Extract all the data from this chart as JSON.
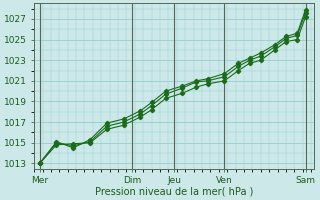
{
  "title": "",
  "xlabel": "Pression niveau de la mer( hPa )",
  "ylabel": "",
  "bg_color": "#cce8e8",
  "grid_color": "#99cccc",
  "line_color": "#1a6b1a",
  "xlim": [
    0,
    100
  ],
  "ylim": [
    1012.5,
    1028.5
  ],
  "yticks": [
    1013,
    1015,
    1017,
    1019,
    1021,
    1023,
    1025,
    1027
  ],
  "xtick_positions": [
    2,
    35,
    50,
    68,
    97
  ],
  "xtick_labels": [
    "Mer",
    "Dim",
    "Jeu",
    "Ven",
    "Sam"
  ],
  "day_lines": [
    2,
    35,
    50,
    68,
    97
  ],
  "series": [
    [
      [
        2,
        1013.0
      ],
      [
        8,
        1014.8
      ],
      [
        14,
        1014.9
      ],
      [
        20,
        1015.0
      ],
      [
        26,
        1016.3
      ],
      [
        32,
        1016.7
      ],
      [
        38,
        1017.5
      ],
      [
        42,
        1018.2
      ],
      [
        47,
        1019.3
      ],
      [
        53,
        1019.8
      ],
      [
        58,
        1020.4
      ],
      [
        62,
        1020.7
      ],
      [
        68,
        1021.0
      ],
      [
        73,
        1022.0
      ],
      [
        77,
        1022.7
      ],
      [
        81,
        1023.0
      ],
      [
        86,
        1024.0
      ],
      [
        90,
        1024.8
      ],
      [
        94,
        1025.0
      ],
      [
        97,
        1027.2
      ]
    ],
    [
      [
        2,
        1013.0
      ],
      [
        8,
        1015.0
      ],
      [
        14,
        1014.7
      ],
      [
        20,
        1015.1
      ],
      [
        26,
        1016.6
      ],
      [
        32,
        1017.0
      ],
      [
        38,
        1017.8
      ],
      [
        42,
        1018.6
      ],
      [
        47,
        1019.7
      ],
      [
        53,
        1020.3
      ],
      [
        58,
        1020.9
      ],
      [
        62,
        1021.0
      ],
      [
        68,
        1021.4
      ],
      [
        73,
        1022.4
      ],
      [
        77,
        1023.0
      ],
      [
        81,
        1023.4
      ],
      [
        86,
        1024.3
      ],
      [
        90,
        1025.1
      ],
      [
        94,
        1025.4
      ],
      [
        97,
        1027.6
      ]
    ],
    [
      [
        2,
        1013.0
      ],
      [
        8,
        1015.1
      ],
      [
        14,
        1014.5
      ],
      [
        20,
        1015.3
      ],
      [
        26,
        1016.9
      ],
      [
        32,
        1017.3
      ],
      [
        38,
        1018.1
      ],
      [
        42,
        1018.9
      ],
      [
        47,
        1020.0
      ],
      [
        53,
        1020.5
      ],
      [
        58,
        1021.0
      ],
      [
        62,
        1021.2
      ],
      [
        68,
        1021.7
      ],
      [
        73,
        1022.7
      ],
      [
        77,
        1023.2
      ],
      [
        81,
        1023.7
      ],
      [
        86,
        1024.5
      ],
      [
        90,
        1025.3
      ],
      [
        94,
        1025.6
      ],
      [
        97,
        1027.9
      ]
    ]
  ]
}
